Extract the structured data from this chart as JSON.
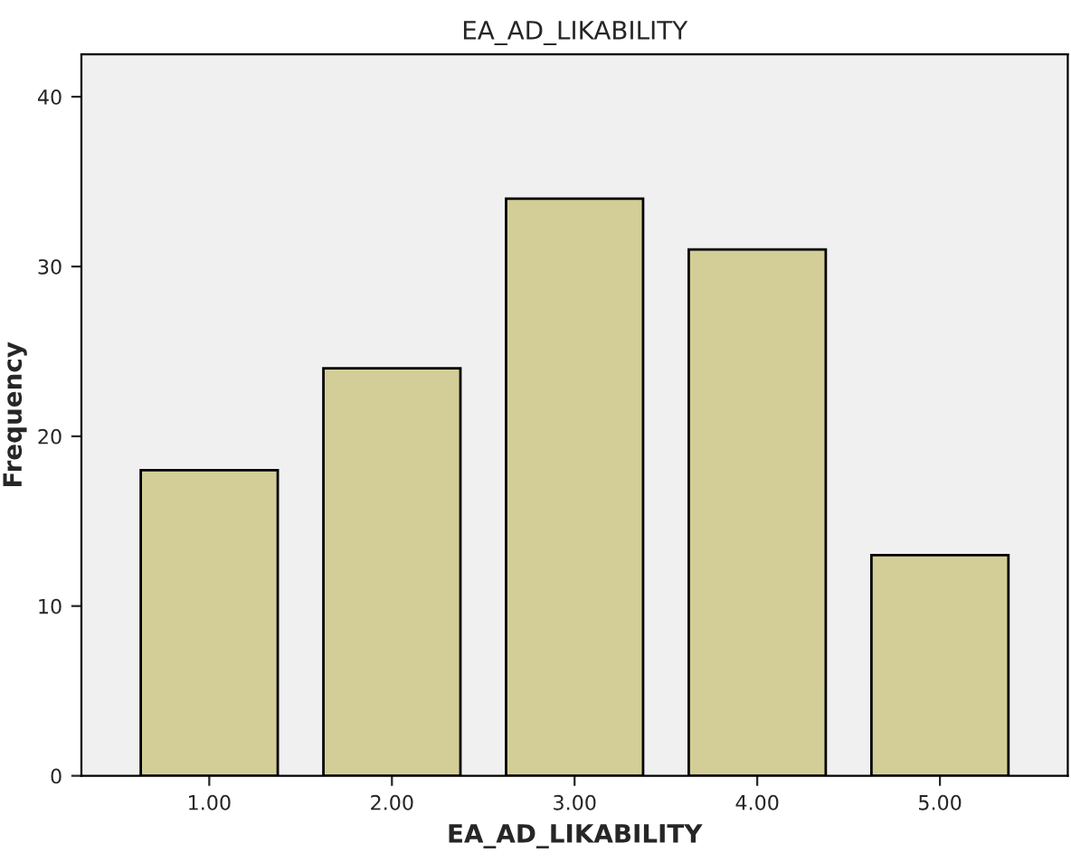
{
  "chart_data": {
    "type": "bar",
    "title": "EA_AD_LIKABILITY",
    "xlabel": "EA_AD_LIKABILITY",
    "ylabel": "Frequency",
    "categories": [
      "1.00",
      "2.00",
      "3.00",
      "4.00",
      "5.00"
    ],
    "values": [
      18,
      24,
      34,
      31,
      13
    ],
    "color": "#d3ce97",
    "ylim": [
      0,
      42.5
    ],
    "yticks": [
      0,
      10,
      20,
      30,
      40
    ],
    "grid": false
  }
}
